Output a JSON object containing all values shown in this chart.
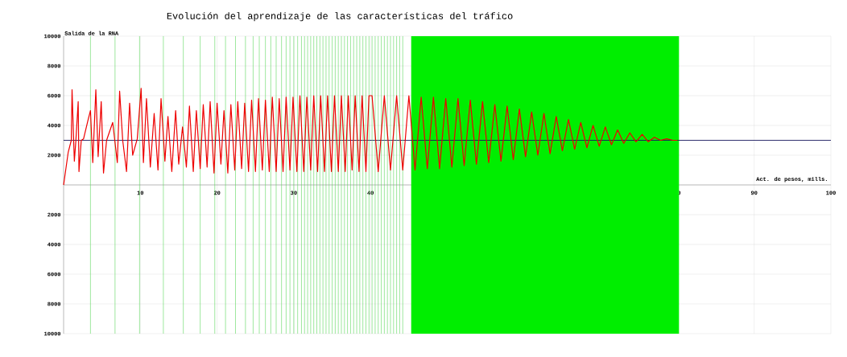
{
  "chart_data": {
    "type": "line",
    "title": "Evolución del aprendizaje de las características del tráfico",
    "ylabel": "Salida de la RNA",
    "xlabel": "Act. de pesos, mills.",
    "xlim": [
      0,
      100
    ],
    "ylim": [
      -10000,
      10000
    ],
    "xticks": [
      10,
      20,
      30,
      40,
      80,
      90,
      100
    ],
    "yticks": [
      10000,
      8000,
      6000,
      4000,
      2000,
      {
        "value": -2000,
        "label": "2000"
      },
      {
        "value": -4000,
        "label": "4000"
      },
      {
        "value": -6000,
        "label": "6000"
      },
      {
        "value": -8000,
        "label": "8000"
      },
      {
        "value": -10000,
        "label": "10000"
      }
    ],
    "grid": true,
    "x": [
      0,
      0.6,
      1.0,
      1.1,
      1.3,
      1.4,
      1.6,
      1.9,
      2.0,
      2.3,
      2.6,
      3.2,
      3.5,
      3.8,
      4.2,
      4.5,
      4.9,
      5.2,
      5.6,
      6.4,
      7.0,
      7.3,
      7.7,
      8.2,
      8.6,
      9.0,
      9.6,
      10.1,
      10.4,
      10.8,
      11.3,
      11.8,
      12.3,
      12.7,
      13.2,
      13.6,
      14.1,
      14.6,
      15.0,
      15.5,
      16.0,
      16.4,
      16.9,
      17.3,
      17.8,
      18.2,
      18.7,
      19.1,
      19.6,
      20.0,
      20.5,
      20.9,
      21.4,
      21.8,
      22.3,
      22.7,
      23.2,
      23.6,
      24.1,
      24.5,
      25.0,
      25.4,
      25.9,
      26.3,
      26.8,
      27.2,
      27.7,
      28.1,
      28.6,
      29.0,
      29.5,
      29.9,
      30.4,
      30.8,
      31.3,
      31.7,
      32.2,
      32.6,
      33.1,
      33.5,
      34.0,
      34.4,
      34.9,
      35.3,
      35.8,
      36.2,
      36.7,
      37.1,
      37.6,
      38.0,
      38.5,
      38.9,
      39.4,
      39.8,
      40.2,
      41.0,
      41.8,
      42.6,
      43.4,
      44.2,
      45.0,
      45.8,
      46.6,
      47.4,
      48.2,
      49.0,
      49.8,
      50.6,
      51.4,
      52.2,
      53.0,
      53.8,
      54.6,
      55.4,
      56.2,
      57.0,
      57.8,
      58.6,
      59.4,
      60.2,
      61.0,
      61.8,
      62.6,
      63.4,
      64.2,
      65.0,
      65.8,
      66.6,
      67.4,
      68.2,
      69.0,
      69.8,
      70.6,
      71.4,
      72.2,
      73.0,
      73.8,
      74.6,
      75.4,
      76.2,
      77.0,
      77.8,
      78.6,
      79.4,
      80.0
    ],
    "series": [
      {
        "color": "#ee0000",
        "values": [
          0,
          2200,
          3000,
          6400,
          3100,
          1600,
          3000,
          5600,
          900,
          3000,
          3100,
          4400,
          5000,
          1500,
          6400,
          1900,
          5600,
          800,
          3000,
          4200,
          1500,
          6300,
          3000,
          900,
          5500,
          2000,
          3100,
          6500,
          1500,
          5800,
          1200,
          4800,
          1000,
          5800,
          1600,
          4600,
          900,
          5000,
          1400,
          3900,
          1200,
          5300,
          900,
          5000,
          1100,
          5400,
          1200,
          5600,
          800,
          5500,
          1400,
          5000,
          800,
          5400,
          1000,
          5600,
          1100,
          5500,
          900,
          5700,
          900,
          5800,
          1000,
          5700,
          900,
          5900,
          900,
          5800,
          900,
          5900,
          1000,
          5900,
          900,
          6000,
          900,
          5900,
          1000,
          6000,
          900,
          6000,
          900,
          6000,
          900,
          6000,
          900,
          6000,
          900,
          6000,
          1000,
          6000,
          900,
          6000,
          900,
          6000,
          6000,
          900,
          6000,
          1000,
          6000,
          1000,
          6000,
          1000,
          5900,
          1100,
          5900,
          1100,
          5800,
          1200,
          5800,
          1300,
          5700,
          1400,
          5600,
          1500,
          5400,
          1600,
          5300,
          1700,
          5100,
          1900,
          4900,
          2000,
          4800,
          2100,
          4600,
          2300,
          4400,
          2400,
          4200,
          2500,
          4000,
          2600,
          3900,
          2700,
          3700,
          2800,
          3500,
          2900,
          3400,
          2900,
          3200,
          3000,
          3100,
          3000,
          3000
        ]
      }
    ],
    "bands": [
      {
        "axis": "x",
        "from": 45.3,
        "to": 80.2,
        "color": "#00ee00"
      }
    ],
    "ref_lines": [
      {
        "axis": "y",
        "value": 3000,
        "color": "#1a1a5e"
      },
      {
        "axis": "x",
        "value": 3.5,
        "color": "#5cd65c"
      },
      {
        "axis": "x",
        "value": 6.7,
        "color": "#5cd65c"
      },
      {
        "axis": "x",
        "value": 9.9,
        "color": "#5cd65c"
      },
      {
        "axis": "x",
        "value": 13.0,
        "color": "#5cd65c"
      },
      {
        "axis": "x",
        "value": 15.6,
        "color": "#5cd65c"
      },
      {
        "axis": "x",
        "value": 17.8,
        "color": "#5cd65c"
      },
      {
        "axis": "x",
        "value": 19.7,
        "color": "#5cd65c"
      },
      {
        "axis": "x",
        "value": 21.1,
        "color": "#5cd65c"
      },
      {
        "axis": "x",
        "value": 22.4,
        "color": "#5cd65c"
      },
      {
        "axis": "x",
        "value": 23.7,
        "color": "#5cd65c"
      },
      {
        "axis": "x",
        "value": 24.7,
        "color": "#5cd65c"
      },
      {
        "axis": "x",
        "value": 25.5,
        "color": "#5cd65c"
      },
      {
        "axis": "x",
        "value": 26.3,
        "color": "#5cd65c"
      },
      {
        "axis": "x",
        "value": 27.0,
        "color": "#5cd65c"
      },
      {
        "axis": "x",
        "value": 27.7,
        "color": "#5cd65c"
      },
      {
        "axis": "x",
        "value": 28.4,
        "color": "#5cd65c"
      },
      {
        "axis": "x",
        "value": 29.0,
        "color": "#5cd65c"
      },
      {
        "axis": "x",
        "value": 29.5,
        "color": "#5cd65c"
      },
      {
        "axis": "x",
        "value": 30.0,
        "color": "#5cd65c"
      },
      {
        "axis": "x",
        "value": 30.5,
        "color": "#5cd65c"
      },
      {
        "axis": "x",
        "value": 31.0,
        "color": "#5cd65c"
      },
      {
        "axis": "x",
        "value": 31.4,
        "color": "#5cd65c"
      },
      {
        "axis": "x",
        "value": 31.8,
        "color": "#5cd65c"
      },
      {
        "axis": "x",
        "value": 32.2,
        "color": "#5cd65c"
      },
      {
        "axis": "x",
        "value": 32.6,
        "color": "#5cd65c"
      },
      {
        "axis": "x",
        "value": 33.0,
        "color": "#5cd65c"
      },
      {
        "axis": "x",
        "value": 33.4,
        "color": "#5cd65c"
      },
      {
        "axis": "x",
        "value": 33.8,
        "color": "#5cd65c"
      },
      {
        "axis": "x",
        "value": 34.2,
        "color": "#5cd65c"
      },
      {
        "axis": "x",
        "value": 34.6,
        "color": "#5cd65c"
      },
      {
        "axis": "x",
        "value": 35.0,
        "color": "#5cd65c"
      },
      {
        "axis": "x",
        "value": 35.4,
        "color": "#5cd65c"
      },
      {
        "axis": "x",
        "value": 35.8,
        "color": "#5cd65c"
      },
      {
        "axis": "x",
        "value": 36.2,
        "color": "#5cd65c"
      },
      {
        "axis": "x",
        "value": 36.6,
        "color": "#5cd65c"
      },
      {
        "axis": "x",
        "value": 37.0,
        "color": "#5cd65c"
      },
      {
        "axis": "x",
        "value": 37.4,
        "color": "#5cd65c"
      },
      {
        "axis": "x",
        "value": 37.8,
        "color": "#5cd65c"
      },
      {
        "axis": "x",
        "value": 38.2,
        "color": "#5cd65c"
      },
      {
        "axis": "x",
        "value": 38.6,
        "color": "#5cd65c"
      },
      {
        "axis": "x",
        "value": 39.0,
        "color": "#5cd65c"
      },
      {
        "axis": "x",
        "value": 39.4,
        "color": "#5cd65c"
      },
      {
        "axis": "x",
        "value": 39.8,
        "color": "#5cd65c"
      },
      {
        "axis": "x",
        "value": 40.2,
        "color": "#5cd65c"
      },
      {
        "axis": "x",
        "value": 40.6,
        "color": "#5cd65c"
      },
      {
        "axis": "x",
        "value": 41.0,
        "color": "#5cd65c"
      },
      {
        "axis": "x",
        "value": 41.4,
        "color": "#5cd65c"
      },
      {
        "axis": "x",
        "value": 41.8,
        "color": "#5cd65c"
      },
      {
        "axis": "x",
        "value": 42.2,
        "color": "#5cd65c"
      },
      {
        "axis": "x",
        "value": 42.6,
        "color": "#5cd65c"
      },
      {
        "axis": "x",
        "value": 43.0,
        "color": "#5cd65c"
      },
      {
        "axis": "x",
        "value": 43.4,
        "color": "#5cd65c"
      },
      {
        "axis": "x",
        "value": 43.8,
        "color": "#5cd65c"
      },
      {
        "axis": "x",
        "value": 44.2,
        "color": "#5cd65c"
      }
    ]
  }
}
